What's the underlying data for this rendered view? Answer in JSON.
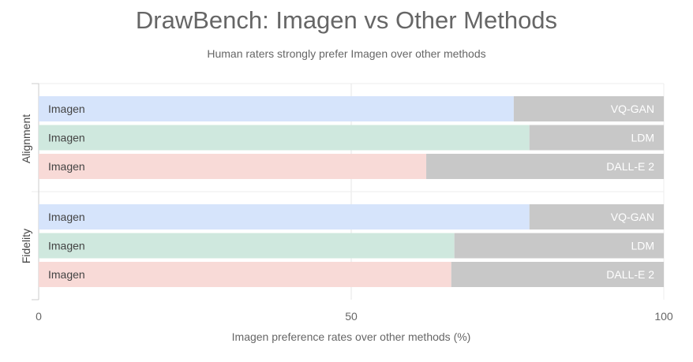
{
  "chart_data": {
    "type": "bar",
    "orientation": "horizontal",
    "stacked": true,
    "title": "DrawBench: Imagen vs Other Methods",
    "subtitle": "Human raters strongly prefer Imagen over other methods",
    "xlabel": "Imagen preference rates over other methods (%)",
    "xlim": [
      0,
      100
    ],
    "xticks": [
      "0",
      "50",
      "100"
    ],
    "grid": true,
    "bar_label": "Imagen",
    "colors": {
      "VQ-GAN": "#d6e4fb",
      "LDM": "#cfe8de",
      "DALL-E 2": "#f8dad7",
      "remainder": "#c8c8c8"
    },
    "groups": [
      {
        "name": "Alignment",
        "bars": [
          {
            "competitor": "VQ-GAN",
            "imagen": 76
          },
          {
            "competitor": "LDM",
            "imagen": 78.5
          },
          {
            "competitor": "DALL-E 2",
            "imagen": 62
          }
        ]
      },
      {
        "name": "Fidelity",
        "bars": [
          {
            "competitor": "VQ-GAN",
            "imagen": 78.5
          },
          {
            "competitor": "LDM",
            "imagen": 66.5
          },
          {
            "competitor": "DALL-E 2",
            "imagen": 66
          }
        ]
      }
    ]
  }
}
